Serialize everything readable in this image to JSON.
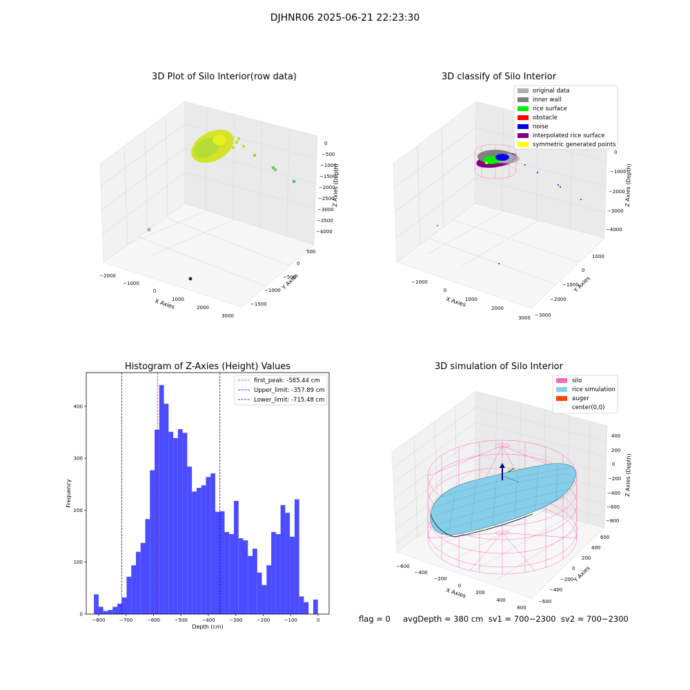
{
  "suptitle": "DJHNR06 2025-06-21 22:23:30",
  "status_text": "flag = 0     avgDepth = 380 cm  sv1 = 700~2300  sv2 = 700~2300",
  "colors": {
    "hist_bar": "#4b4bff",
    "first_peak": "#ff0000",
    "limit": "#0000cc",
    "silo": "#ff69b4",
    "rice_simulation": "#87ceeb",
    "auger": "#ff4500",
    "original_data": "#b0b0b0",
    "inner_wall": "#808080",
    "rice_surface": "#00ee00",
    "obstacle": "#ff0000",
    "noise": "#0000ee",
    "interpolated_rice_surface": "#800080",
    "symmetric_generated_points": "#ffff00"
  },
  "plot1": {
    "title": "3D Plot of Silo Interior(row data)",
    "x_axis_label": "X Axies",
    "y_axis_label": "Y Axies",
    "z_axis_label": "Z Axies (Depth)",
    "x_ticks": [
      "−2000",
      "−1000",
      "0",
      "1000",
      "2000",
      "3000"
    ],
    "y_ticks": [
      "500",
      "0",
      "−500",
      "−1000",
      "−1500"
    ],
    "z_ticks": [
      "0",
      "−500",
      "−1000",
      "−1500",
      "−2000",
      "−2500",
      "−3000",
      "−3500",
      "−4000"
    ]
  },
  "plot2": {
    "title": "3D classify of Silo Interior",
    "x_axis_label": "X Axies",
    "y_axis_label": "Y Axies",
    "z_axis_label": "Z Axies (Depth)",
    "x_ticks": [
      "−1000",
      "0",
      "1000",
      "2000",
      "3000"
    ],
    "y_ticks": [
      "1000",
      "0",
      "−1000",
      "−2000",
      "−3000"
    ],
    "z_ticks": [
      "0",
      "−1000",
      "−2000",
      "−3000",
      "−4000"
    ],
    "legend": [
      {
        "label": "original data",
        "color": "#b0b0b0"
      },
      {
        "label": "inner wall",
        "color": "#808080"
      },
      {
        "label": "rice surface",
        "color": "#00ee00"
      },
      {
        "label": "obstacle",
        "color": "#ff0000"
      },
      {
        "label": "noise",
        "color": "#0000ee"
      },
      {
        "label": "interpolated rice surface",
        "color": "#800080"
      },
      {
        "label": "symmetric generated points",
        "color": "#ffff00"
      }
    ]
  },
  "plot4": {
    "title": "3D simulation of Silo Interior",
    "x_axis_label": "X Axies",
    "y_axis_label": "Y Axies",
    "z_axis_label": "Z Axies (Depth)",
    "x_ticks": [
      "−600",
      "−400",
      "−200",
      "0",
      "200",
      "400",
      "600"
    ],
    "y_ticks": [
      "600",
      "400",
      "200",
      "0",
      "−200",
      "−400",
      "−600"
    ],
    "z_ticks": [
      "400",
      "200",
      "0",
      "−200",
      "−400",
      "−600",
      "−800"
    ],
    "legend": [
      {
        "label": "silo",
        "color": "#ff69b4"
      },
      {
        "label": "rice simulation",
        "color": "#87ceeb"
      },
      {
        "label": "auger",
        "color": "#ff4500"
      },
      {
        "label": "center(0,0)",
        "color": ""
      }
    ]
  },
  "chart_data": {
    "type": "bar",
    "title": "Histogram of Z-Axies (Height) Values",
    "xlabel": "Depth (cm)",
    "ylabel": "Frequency",
    "xlim": [
      -845,
      40
    ],
    "ylim": [
      0,
      465
    ],
    "bin_width": 17,
    "x_ticks": [
      -800,
      -700,
      -600,
      -500,
      -400,
      -300,
      -200,
      -100,
      0
    ],
    "x_tick_labels": [
      "−800",
      "−700",
      "−600",
      "−500",
      "−400",
      "−300",
      "−200",
      "−100",
      "0"
    ],
    "y_ticks": [
      0,
      100,
      200,
      300,
      400
    ],
    "y_tick_labels": [
      "0",
      "100",
      "200",
      "300",
      "400"
    ],
    "bins": [
      {
        "start": -817,
        "count": 38
      },
      {
        "start": -800,
        "count": 14
      },
      {
        "start": -783,
        "count": 6
      },
      {
        "start": -766,
        "count": 8
      },
      {
        "start": -749,
        "count": 14
      },
      {
        "start": -732,
        "count": 20
      },
      {
        "start": -715,
        "count": 32
      },
      {
        "start": -698,
        "count": 72
      },
      {
        "start": -681,
        "count": 94
      },
      {
        "start": -664,
        "count": 120
      },
      {
        "start": -647,
        "count": 137
      },
      {
        "start": -630,
        "count": 183
      },
      {
        "start": -613,
        "count": 277
      },
      {
        "start": -596,
        "count": 355
      },
      {
        "start": -579,
        "count": 441
      },
      {
        "start": -562,
        "count": 405
      },
      {
        "start": -545,
        "count": 351
      },
      {
        "start": -528,
        "count": 339
      },
      {
        "start": -511,
        "count": 356
      },
      {
        "start": -494,
        "count": 349
      },
      {
        "start": -477,
        "count": 284
      },
      {
        "start": -460,
        "count": 236
      },
      {
        "start": -443,
        "count": 243
      },
      {
        "start": -426,
        "count": 248
      },
      {
        "start": -409,
        "count": 264
      },
      {
        "start": -392,
        "count": 271
      },
      {
        "start": -375,
        "count": 197
      },
      {
        "start": -358,
        "count": 198
      },
      {
        "start": -341,
        "count": 158
      },
      {
        "start": -324,
        "count": 154
      },
      {
        "start": -307,
        "count": 218
      },
      {
        "start": -290,
        "count": 146
      },
      {
        "start": -273,
        "count": 142
      },
      {
        "start": -256,
        "count": 112
      },
      {
        "start": -239,
        "count": 126
      },
      {
        "start": -222,
        "count": 80
      },
      {
        "start": -205,
        "count": 56
      },
      {
        "start": -188,
        "count": 94
      },
      {
        "start": -171,
        "count": 158
      },
      {
        "start": -154,
        "count": 154
      },
      {
        "start": -137,
        "count": 210
      },
      {
        "start": -120,
        "count": 195
      },
      {
        "start": -103,
        "count": 149
      },
      {
        "start": -86,
        "count": 221
      },
      {
        "start": -69,
        "count": 34
      },
      {
        "start": -52,
        "count": 23
      },
      {
        "start": -18,
        "count": 28
      }
    ],
    "reference_lines": [
      {
        "label": "first_peak: -585.44 cm",
        "x": -585.44,
        "color": "#ff0000"
      },
      {
        "label": "Upper_limit: -357.89 cm",
        "x": -357.89,
        "color": "#0000cc"
      },
      {
        "label": "Lower_limit: -715.48 cm",
        "x": -715.48,
        "color": "#0000cc"
      }
    ],
    "legend_position": "top-right"
  }
}
